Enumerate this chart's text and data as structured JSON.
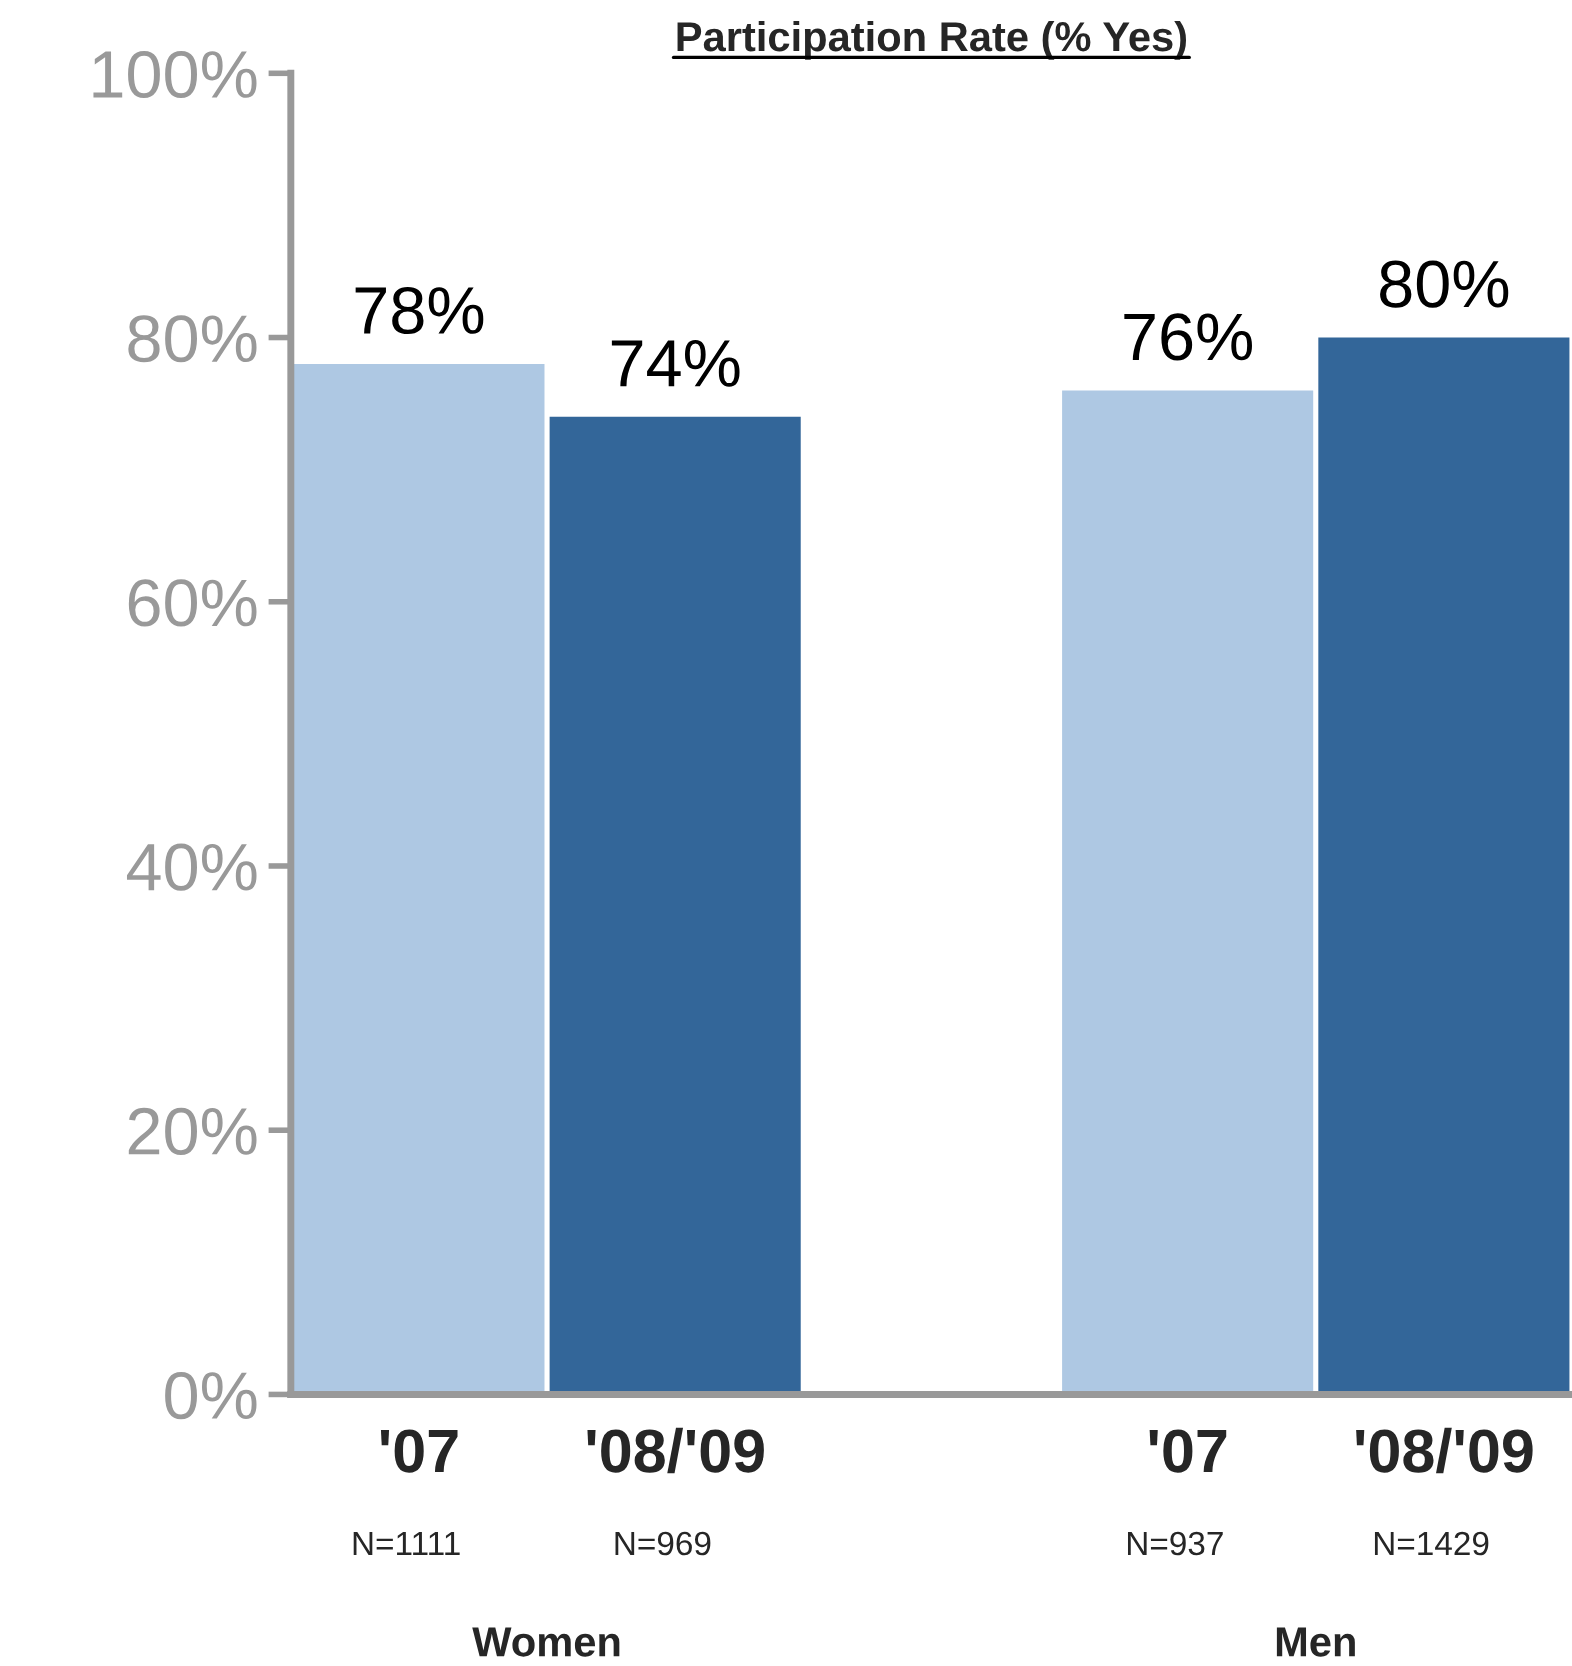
{
  "chart_data": {
    "type": "bar",
    "title": "Participation Rate (% Yes)",
    "categories": [
      "'07",
      "'08/'09",
      null,
      "'07",
      "'08/'09"
    ],
    "values": [
      78,
      74,
      null,
      76,
      80
    ],
    "colors": [
      "#aec8e3",
      "#336699",
      "#ffffff",
      "#aec8e3",
      "#336699"
    ],
    "value_labels": [
      "78%",
      "74%",
      null,
      "76%",
      "80%"
    ],
    "ylim": [
      0,
      100
    ],
    "yticks": [
      {
        "value": 0,
        "label": "0%"
      },
      {
        "value": 20,
        "label": "20%"
      },
      {
        "value": 40,
        "label": "40%"
      },
      {
        "value": 60,
        "label": "60%"
      },
      {
        "value": 80,
        "label": "80%"
      },
      {
        "value": 100,
        "label": "100%"
      }
    ],
    "annotations": [
      "N=1111",
      "N=969",
      "N=937",
      "N=1429",
      "Women",
      "Men"
    ],
    "grid": false,
    "legend": false
  }
}
